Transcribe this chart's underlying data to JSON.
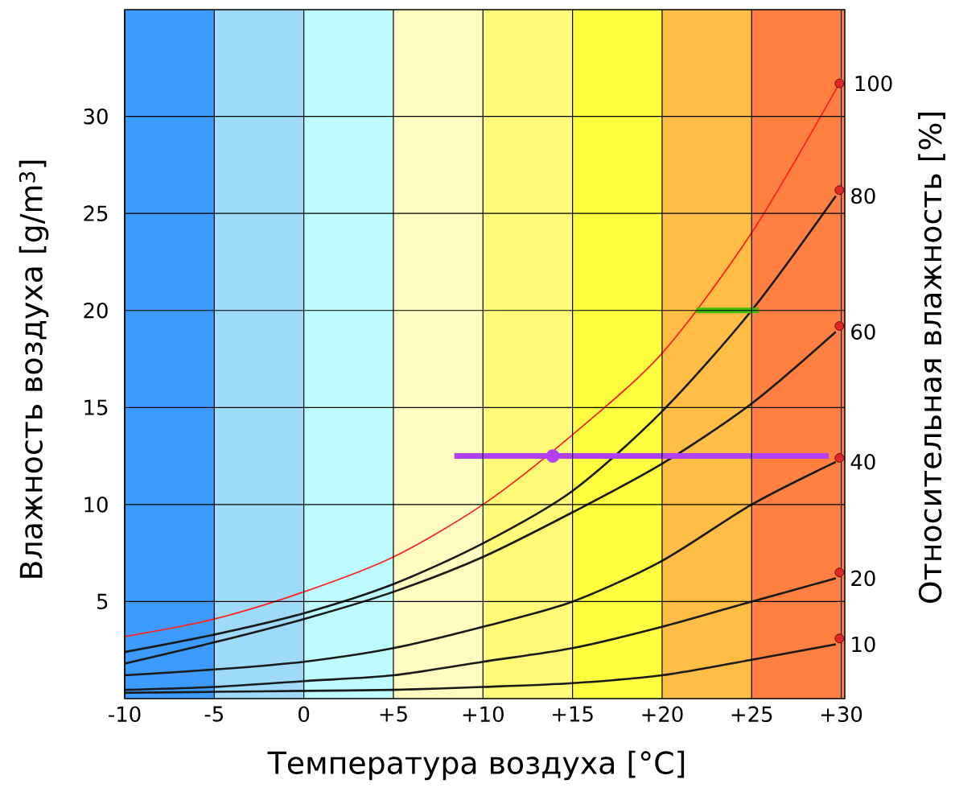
{
  "chart_data": {
    "type": "line",
    "xlabel": "Температура воздуха [°C]",
    "ylabel": "Влажность воздуха [g/m$^{3}$]",
    "y2label": "Относительная влажность [%]",
    "xlim": [
      -10,
      30.2
    ],
    "ylim": [
      0,
      35.5
    ],
    "xticks": [
      {
        "value": -10,
        "label": "-10"
      },
      {
        "value": -5,
        "label": "-5"
      },
      {
        "value": 0,
        "label": "0"
      },
      {
        "value": 5,
        "label": "+5"
      },
      {
        "value": 10,
        "label": "+10"
      },
      {
        "value": 15,
        "label": "+15"
      },
      {
        "value": 20,
        "label": "+20"
      },
      {
        "value": 25,
        "label": "+25"
      },
      {
        "value": 30,
        "label": "+30"
      }
    ],
    "yticks": [
      5,
      10,
      15,
      20,
      25,
      30
    ],
    "grid": true,
    "bands": [
      {
        "axis": "x",
        "from": -10,
        "to": -5,
        "color": "#3d9bff"
      },
      {
        "axis": "x",
        "from": -5,
        "to": 0,
        "color": "#9edbfa"
      },
      {
        "axis": "x",
        "from": 0,
        "to": 5,
        "color": "#bdfdff"
      },
      {
        "axis": "x",
        "from": 5,
        "to": 10,
        "color": "#fffcc0"
      },
      {
        "axis": "x",
        "from": 10,
        "to": 15,
        "color": "#fffa78"
      },
      {
        "axis": "x",
        "from": 15,
        "to": 20,
        "color": "#ffff40"
      },
      {
        "axis": "x",
        "from": 20,
        "to": 25,
        "color": "#ffbd45"
      },
      {
        "axis": "x",
        "from": 25,
        "to": 30.2,
        "color": "#ff8040"
      }
    ],
    "series": [
      {
        "name": "100",
        "color": "#ff2020",
        "x": [
          -10,
          -5,
          0,
          5,
          10,
          15,
          20,
          25,
          29.9
        ],
        "values": [
          3.2,
          4.1,
          5.5,
          7.3,
          10.0,
          13.6,
          17.8,
          24.0,
          31.7
        ]
      },
      {
        "name": "80",
        "color": "#1a1a1a",
        "x": [
          -10,
          -5,
          0,
          5,
          10,
          15,
          20,
          25,
          29.7
        ],
        "values": [
          2.4,
          3.3,
          4.4,
          5.9,
          8.0,
          10.7,
          14.8,
          20.0,
          25.9
        ]
      },
      {
        "name": "60",
        "color": "#1a1a1a",
        "x": [
          -10,
          -5,
          0,
          5,
          10,
          15,
          20,
          25,
          29.7
        ],
        "values": [
          1.8,
          2.9,
          4.1,
          5.5,
          7.3,
          9.6,
          12.1,
          15.2,
          18.9
        ]
      },
      {
        "name": "40",
        "color": "#1a1a1a",
        "x": [
          -10,
          -5,
          0,
          5,
          10,
          15,
          20,
          25,
          29.7
        ],
        "values": [
          1.2,
          1.5,
          1.9,
          2.6,
          3.7,
          5.0,
          7.1,
          10.0,
          12.2
        ]
      },
      {
        "name": "20",
        "color": "#1a1a1a",
        "x": [
          -10,
          -5,
          0,
          5,
          10,
          15,
          20,
          25,
          29.7
        ],
        "values": [
          0.45,
          0.6,
          0.9,
          1.2,
          1.9,
          2.6,
          3.7,
          5.0,
          6.2
        ]
      },
      {
        "name": "10",
        "color": "#1a1a1a",
        "x": [
          -10,
          -5,
          0,
          5,
          10,
          15,
          20,
          25,
          29.7
        ],
        "values": [
          0.3,
          0.35,
          0.4,
          0.45,
          0.6,
          0.8,
          1.2,
          2.0,
          2.8
        ]
      },
      {
        "type": "scatter",
        "marker": "circle",
        "color": "#e02828",
        "x": [
          29.9,
          29.9,
          29.9,
          29.9,
          29.9,
          29.9
        ],
        "values": [
          31.7,
          26.2,
          19.2,
          12.4,
          6.5,
          3.1
        ]
      },
      {
        "color": "#b040f0",
        "x": [
          8.4,
          29.3
        ],
        "values": [
          12.5,
          12.5
        ]
      },
      {
        "type": "scatter",
        "marker": "circle",
        "color": "#b040f0",
        "x": [
          13.9
        ],
        "values": [
          12.5
        ]
      },
      {
        "color": "#44bb00",
        "x": [
          21.9,
          25.4
        ],
        "values": [
          20,
          20
        ]
      }
    ]
  }
}
